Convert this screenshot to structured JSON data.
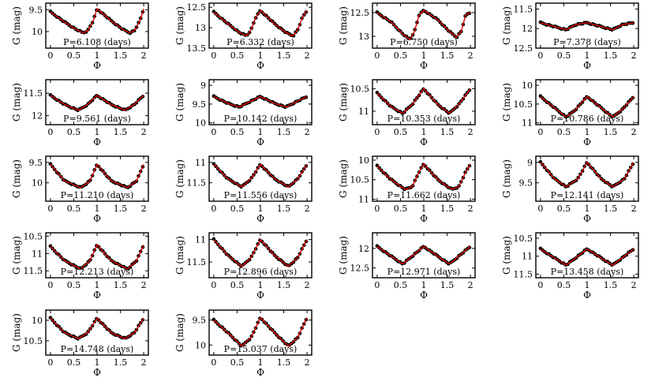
{
  "chart_data": [
    {
      "type": "scatter",
      "panel": 1,
      "annotation": "P=6.108 (days)",
      "xlabel": "Φ",
      "ylabel": "G (mag)",
      "xlim": [
        -0.1,
        2.1
      ],
      "ylim": [
        9.35,
        10.38
      ],
      "y_inverted": true,
      "xticks": [
        0,
        0.5,
        1,
        1.5,
        2
      ],
      "yticks": [
        9.5,
        10
      ],
      "curve": [
        [
          0,
          9.55
        ],
        [
          0.3,
          9.78
        ],
        [
          0.55,
          9.95
        ],
        [
          0.7,
          10.03
        ],
        [
          0.8,
          9.98
        ],
        [
          0.92,
          9.75
        ],
        [
          1,
          9.48
        ],
        [
          1.3,
          9.75
        ],
        [
          1.55,
          9.95
        ],
        [
          1.7,
          10.03
        ],
        [
          1.8,
          9.98
        ],
        [
          1.92,
          9.75
        ],
        [
          2,
          9.48
        ]
      ],
      "point_color": "#000000",
      "curve_color": "#e00000"
    },
    {
      "type": "scatter",
      "panel": 2,
      "annotation": "P=6.332 (days)",
      "xlabel": "Φ",
      "ylabel": "G (mag)",
      "xlim": [
        -0.1,
        2.1
      ],
      "ylim": [
        12.4,
        13.5
      ],
      "y_inverted": true,
      "xticks": [
        0,
        0.5,
        1,
        1.5,
        2
      ],
      "yticks": [
        12.5,
        13,
        13.5
      ],
      "curve": [
        [
          0,
          12.62
        ],
        [
          0.3,
          12.9
        ],
        [
          0.55,
          13.12
        ],
        [
          0.7,
          13.2
        ],
        [
          0.8,
          13.05
        ],
        [
          0.9,
          12.75
        ],
        [
          1,
          12.58
        ],
        [
          1.3,
          12.9
        ],
        [
          1.55,
          13.12
        ],
        [
          1.7,
          13.2
        ],
        [
          1.8,
          13.05
        ],
        [
          1.9,
          12.75
        ],
        [
          2,
          12.58
        ]
      ],
      "point_color": "#000000",
      "curve_color": "#e00000"
    },
    {
      "type": "scatter",
      "panel": 3,
      "annotation": "P=6.750 (days)",
      "xlabel": "Φ",
      "ylabel": "G (mag)",
      "xlim": [
        -0.1,
        2.1
      ],
      "ylim": [
        12.3,
        13.25
      ],
      "y_inverted": true,
      "xticks": [
        0,
        0.5,
        1,
        1.5,
        2
      ],
      "yticks": [
        12.5,
        13
      ],
      "curve": [
        [
          0,
          12.5
        ],
        [
          0.3,
          12.7
        ],
        [
          0.55,
          12.95
        ],
        [
          0.7,
          13.07
        ],
        [
          0.8,
          12.9
        ],
        [
          0.9,
          12.55
        ],
        [
          1,
          12.45
        ],
        [
          1.3,
          12.65
        ],
        [
          1.55,
          12.9
        ],
        [
          1.7,
          13.02
        ],
        [
          1.8,
          12.9
        ],
        [
          1.9,
          12.55
        ],
        [
          2,
          12.5
        ]
      ],
      "point_color": "#000000",
      "curve_color": "#e00000"
    },
    {
      "type": "scatter",
      "panel": 4,
      "annotation": "P=7.378 (days)",
      "xlabel": "Φ",
      "ylabel": "G (mag)",
      "xlim": [
        -0.1,
        2.1
      ],
      "ylim": [
        11.35,
        12.5
      ],
      "y_inverted": true,
      "xticks": [
        0,
        0.5,
        1,
        1.5,
        2
      ],
      "yticks": [
        11.5,
        12,
        12.5
      ],
      "curve": [
        [
          0,
          11.85
        ],
        [
          0.3,
          11.95
        ],
        [
          0.55,
          12.03
        ],
        [
          0.75,
          11.9
        ],
        [
          1,
          11.85
        ],
        [
          1.3,
          11.95
        ],
        [
          1.55,
          12.03
        ],
        [
          1.75,
          11.9
        ],
        [
          2,
          11.85
        ]
      ],
      "point_color": "#000000",
      "curve_color": "#e00000"
    },
    {
      "type": "scatter",
      "panel": 5,
      "annotation": "P=9.561 (days)",
      "xlabel": "Φ",
      "ylabel": "G (mag)",
      "xlim": [
        -0.1,
        2.1
      ],
      "ylim": [
        11.2,
        12.2
      ],
      "y_inverted": true,
      "xticks": [
        0,
        0.5,
        1,
        1.5,
        2
      ],
      "yticks": [
        11.5,
        12
      ],
      "curve": [
        [
          0,
          11.55
        ],
        [
          0.3,
          11.75
        ],
        [
          0.6,
          11.88
        ],
        [
          0.8,
          11.75
        ],
        [
          1,
          11.55
        ],
        [
          1.3,
          11.75
        ],
        [
          1.6,
          11.88
        ],
        [
          1.8,
          11.75
        ],
        [
          2,
          11.55
        ]
      ],
      "point_color": "#000000",
      "curve_color": "#e00000"
    },
    {
      "type": "scatter",
      "panel": 6,
      "annotation": "P=10.142 (days)",
      "xlabel": "Φ",
      "ylabel": "G (mag)",
      "xlim": [
        -0.1,
        2.1
      ],
      "ylim": [
        8.85,
        10.05
      ],
      "y_inverted": true,
      "xticks": [
        0,
        0.5,
        1,
        1.5,
        2
      ],
      "yticks": [
        9,
        9.5,
        10
      ],
      "curve": [
        [
          0,
          9.3
        ],
        [
          0.3,
          9.48
        ],
        [
          0.55,
          9.58
        ],
        [
          0.75,
          9.45
        ],
        [
          1,
          9.3
        ],
        [
          1.3,
          9.48
        ],
        [
          1.55,
          9.58
        ],
        [
          1.75,
          9.45
        ],
        [
          2,
          9.3
        ]
      ],
      "point_color": "#000000",
      "curve_color": "#e00000"
    },
    {
      "type": "scatter",
      "panel": 7,
      "annotation": "P=10.353 (days)",
      "xlabel": "Φ",
      "ylabel": "G (mag)",
      "xlim": [
        -0.1,
        2.1
      ],
      "ylim": [
        10.3,
        11.3
      ],
      "y_inverted": true,
      "xticks": [
        0,
        0.5,
        1,
        1.5,
        2
      ],
      "yticks": [
        10.5,
        11
      ],
      "curve": [
        [
          0,
          10.6
        ],
        [
          0.3,
          10.9
        ],
        [
          0.55,
          11.05
        ],
        [
          0.75,
          10.85
        ],
        [
          1,
          10.5
        ],
        [
          1.3,
          10.85
        ],
        [
          1.55,
          11.05
        ],
        [
          1.75,
          10.85
        ],
        [
          2,
          10.5
        ]
      ],
      "point_color": "#000000",
      "curve_color": "#e00000"
    },
    {
      "type": "scatter",
      "panel": 8,
      "annotation": "P=10.786 (days)",
      "xlabel": "Φ",
      "ylabel": "G (mag)",
      "xlim": [
        -0.1,
        2.1
      ],
      "ylim": [
        9.85,
        11.05
      ],
      "y_inverted": true,
      "xticks": [
        0,
        0.5,
        1,
        1.5,
        2
      ],
      "yticks": [
        10,
        10.5,
        11
      ],
      "curve": [
        [
          0,
          10.3
        ],
        [
          0.3,
          10.6
        ],
        [
          0.55,
          10.85
        ],
        [
          0.75,
          10.65
        ],
        [
          1,
          10.3
        ],
        [
          1.3,
          10.6
        ],
        [
          1.55,
          10.85
        ],
        [
          1.75,
          10.65
        ],
        [
          2,
          10.3
        ]
      ],
      "point_color": "#000000",
      "curve_color": "#e00000"
    },
    {
      "type": "scatter",
      "panel": 9,
      "annotation": "P=11.210 (days)",
      "xlabel": "Φ",
      "ylabel": "G (mag)",
      "xlim": [
        -0.1,
        2.1
      ],
      "ylim": [
        9.35,
        10.45
      ],
      "y_inverted": true,
      "xticks": [
        0,
        0.5,
        1,
        1.5,
        2
      ],
      "yticks": [
        9.5,
        10
      ],
      "curve": [
        [
          0,
          9.55
        ],
        [
          0.3,
          9.95
        ],
        [
          0.65,
          10.12
        ],
        [
          0.85,
          9.95
        ],
        [
          1,
          9.55
        ],
        [
          1.3,
          9.95
        ],
        [
          1.65,
          10.12
        ],
        [
          1.85,
          9.95
        ],
        [
          2,
          9.55
        ]
      ],
      "point_color": "#000000",
      "curve_color": "#e00000"
    },
    {
      "type": "scatter",
      "panel": 10,
      "annotation": "P=11.556 (days)",
      "xlabel": "Φ",
      "ylabel": "G (mag)",
      "xlim": [
        -0.1,
        2.1
      ],
      "ylim": [
        10.85,
        11.95
      ],
      "y_inverted": true,
      "xticks": [
        0,
        0.5,
        1,
        1.5,
        2
      ],
      "yticks": [
        11,
        11.5
      ],
      "curve": [
        [
          0,
          11.05
        ],
        [
          0.3,
          11.4
        ],
        [
          0.6,
          11.6
        ],
        [
          0.8,
          11.4
        ],
        [
          1,
          11.05
        ],
        [
          1.3,
          11.4
        ],
        [
          1.6,
          11.6
        ],
        [
          1.8,
          11.4
        ],
        [
          2,
          11.05
        ]
      ],
      "point_color": "#000000",
      "curve_color": "#e00000"
    },
    {
      "type": "scatter",
      "panel": 11,
      "annotation": "P=11.662 (days)",
      "xlabel": "Φ",
      "ylabel": "G (mag)",
      "xlim": [
        -0.1,
        2.1
      ],
      "ylim": [
        9.9,
        11.05
      ],
      "y_inverted": true,
      "xticks": [
        0,
        0.5,
        1,
        1.5,
        2
      ],
      "yticks": [
        10,
        10.5,
        11
      ],
      "curve": [
        [
          0,
          10.15
        ],
        [
          0.3,
          10.5
        ],
        [
          0.6,
          10.75
        ],
        [
          0.75,
          10.68
        ],
        [
          0.9,
          10.3
        ],
        [
          1,
          10.1
        ],
        [
          1.3,
          10.5
        ],
        [
          1.6,
          10.75
        ],
        [
          1.75,
          10.68
        ],
        [
          1.9,
          10.3
        ],
        [
          2,
          10.1
        ]
      ],
      "point_color": "#000000",
      "curve_color": "#e00000"
    },
    {
      "type": "scatter",
      "panel": 12,
      "annotation": "P=12.141 (days)",
      "xlabel": "Φ",
      "ylabel": "G (mag)",
      "xlim": [
        -0.1,
        2.1
      ],
      "ylim": [
        8.85,
        9.95
      ],
      "y_inverted": true,
      "xticks": [
        0,
        0.5,
        1,
        1.5,
        2
      ],
      "yticks": [
        9,
        9.5
      ],
      "curve": [
        [
          0,
          9.0
        ],
        [
          0.3,
          9.4
        ],
        [
          0.55,
          9.6
        ],
        [
          0.8,
          9.4
        ],
        [
          1,
          9.0
        ],
        [
          1.3,
          9.4
        ],
        [
          1.55,
          9.6
        ],
        [
          1.8,
          9.4
        ],
        [
          2,
          9.0
        ]
      ],
      "point_color": "#000000",
      "curve_color": "#e00000"
    },
    {
      "type": "scatter",
      "panel": 13,
      "annotation": "P=12.213 (days)",
      "xlabel": "Φ",
      "ylabel": "G (mag)",
      "xlim": [
        -0.1,
        2.1
      ],
      "ylim": [
        10.4,
        11.7
      ],
      "y_inverted": true,
      "xticks": [
        0,
        0.5,
        1,
        1.5,
        2
      ],
      "yticks": [
        10.5,
        11,
        11.5
      ],
      "curve": [
        [
          0,
          10.8
        ],
        [
          0.3,
          11.2
        ],
        [
          0.65,
          11.45
        ],
        [
          0.85,
          11.2
        ],
        [
          1,
          10.75
        ],
        [
          1.3,
          11.2
        ],
        [
          1.65,
          11.45
        ],
        [
          1.85,
          11.2
        ],
        [
          2,
          10.75
        ]
      ],
      "point_color": "#000000",
      "curve_color": "#e00000"
    },
    {
      "type": "scatter",
      "panel": 14,
      "annotation": "P=12.896 (days)",
      "xlabel": "Φ",
      "ylabel": "G (mag)",
      "xlim": [
        -0.1,
        2.1
      ],
      "ylim": [
        10.85,
        11.85
      ],
      "y_inverted": true,
      "xticks": [
        0,
        0.5,
        1,
        1.5,
        2
      ],
      "yticks": [
        11,
        11.5
      ],
      "curve": [
        [
          0,
          11.0
        ],
        [
          0.3,
          11.35
        ],
        [
          0.6,
          11.6
        ],
        [
          0.8,
          11.4
        ],
        [
          1,
          11.0
        ],
        [
          1.3,
          11.35
        ],
        [
          1.6,
          11.6
        ],
        [
          1.8,
          11.4
        ],
        [
          2,
          11.0
        ]
      ],
      "point_color": "#000000",
      "curve_color": "#e00000"
    },
    {
      "type": "scatter",
      "panel": 15,
      "annotation": "P=12.971 (days)",
      "xlabel": "Φ",
      "ylabel": "G (mag)",
      "xlim": [
        -0.1,
        2.1
      ],
      "ylim": [
        11.6,
        12.75
      ],
      "y_inverted": true,
      "xticks": [
        0,
        0.5,
        1,
        1.5,
        2
      ],
      "yticks": [
        12,
        12.5
      ],
      "curve": [
        [
          0,
          11.95
        ],
        [
          0.3,
          12.2
        ],
        [
          0.55,
          12.4
        ],
        [
          0.8,
          12.15
        ],
        [
          1,
          11.95
        ],
        [
          1.3,
          12.2
        ],
        [
          1.55,
          12.4
        ],
        [
          1.8,
          12.15
        ],
        [
          2,
          11.95
        ]
      ],
      "point_color": "#000000",
      "curve_color": "#e00000"
    },
    {
      "type": "scatter",
      "panel": 16,
      "annotation": "P=13.458 (days)",
      "xlabel": "Φ",
      "ylabel": "G (mag)",
      "xlim": [
        -0.1,
        2.1
      ],
      "ylim": [
        10.35,
        11.6
      ],
      "y_inverted": true,
      "xticks": [
        0,
        0.5,
        1,
        1.5,
        2
      ],
      "yticks": [
        10.5,
        11,
        11.5
      ],
      "curve": [
        [
          0,
          10.8
        ],
        [
          0.3,
          11.05
        ],
        [
          0.55,
          11.25
        ],
        [
          0.8,
          11.0
        ],
        [
          1,
          10.8
        ],
        [
          1.3,
          11.05
        ],
        [
          1.55,
          11.25
        ],
        [
          1.8,
          11.0
        ],
        [
          2,
          10.8
        ]
      ],
      "point_color": "#000000",
      "curve_color": "#e00000"
    },
    {
      "type": "scatter",
      "panel": 17,
      "annotation": "P=14.748 (days)",
      "xlabel": "Φ",
      "ylabel": "G (mag)",
      "xlim": [
        -0.1,
        2.1
      ],
      "ylim": [
        9.75,
        10.85
      ],
      "y_inverted": true,
      "xticks": [
        0,
        0.5,
        1,
        1.5,
        2
      ],
      "yticks": [
        10,
        10.5
      ],
      "curve": [
        [
          0,
          9.95
        ],
        [
          0.3,
          10.3
        ],
        [
          0.6,
          10.45
        ],
        [
          0.8,
          10.3
        ],
        [
          1,
          9.95
        ],
        [
          1.3,
          10.3
        ],
        [
          1.6,
          10.45
        ],
        [
          1.8,
          10.3
        ],
        [
          2,
          9.95
        ]
      ],
      "point_color": "#000000",
      "curve_color": "#e00000"
    },
    {
      "type": "scatter",
      "panel": 18,
      "annotation": "P=15.037 (days)",
      "xlabel": "Φ",
      "ylabel": "G (mag)",
      "xlim": [
        -0.1,
        2.1
      ],
      "ylim": [
        9.3,
        10.2
      ],
      "y_inverted": true,
      "xticks": [
        0,
        0.5,
        1,
        1.5,
        2
      ],
      "yticks": [
        9.5,
        10
      ],
      "curve": [
        [
          0,
          9.5
        ],
        [
          0.3,
          9.75
        ],
        [
          0.6,
          10.02
        ],
        [
          0.8,
          9.85
        ],
        [
          1,
          9.45
        ],
        [
          1.3,
          9.75
        ],
        [
          1.6,
          10.02
        ],
        [
          1.8,
          9.85
        ],
        [
          2,
          9.45
        ]
      ],
      "point_color": "#000000",
      "curve_color": "#e00000"
    }
  ]
}
